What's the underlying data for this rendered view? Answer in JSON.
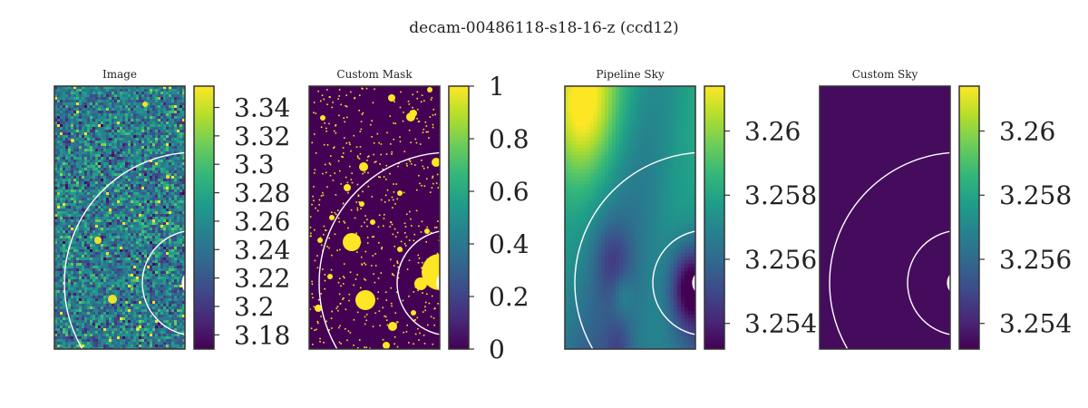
{
  "figure": {
    "title": "decam-00486118-s18-16-z (ccd12)"
  },
  "chart_data": [
    {
      "type": "heatmap",
      "title": "Image",
      "colormap": "viridis",
      "colorbar": {
        "min": 3.17,
        "max": 3.355,
        "ticks": [
          3.18,
          3.2,
          3.22,
          3.24,
          3.26,
          3.28,
          3.3,
          3.32,
          3.34
        ],
        "tick_labels": [
          "3.18",
          "3.2",
          "3.22",
          "3.24",
          "3.26",
          "3.28",
          "3.3",
          "3.32",
          "3.34"
        ]
      },
      "content": "noise",
      "overlay": "circles"
    },
    {
      "type": "heatmap",
      "title": "Custom Mask",
      "colormap": "viridis",
      "colorbar": {
        "min": 0,
        "max": 1,
        "ticks": [
          0,
          0.2,
          0.4,
          0.6,
          0.8,
          1
        ],
        "tick_labels": [
          "0",
          "0.2",
          "0.4",
          "0.6",
          "0.8",
          "1"
        ]
      },
      "content": "mask",
      "overlay": "circles"
    },
    {
      "type": "heatmap",
      "title": "Pipeline Sky",
      "colormap": "viridis",
      "colorbar": {
        "min": 3.2532,
        "max": 3.2614,
        "ticks": [
          3.254,
          3.256,
          3.258,
          3.26
        ],
        "tick_labels": [
          "3.254",
          "3.256",
          "3.258",
          "3.26"
        ]
      },
      "content": "smooth",
      "overlay": "circles"
    },
    {
      "type": "heatmap",
      "title": "Custom Sky",
      "colormap": "viridis",
      "colorbar": {
        "min": 3.2532,
        "max": 3.2614,
        "ticks": [
          3.254,
          3.256,
          3.258,
          3.26
        ],
        "tick_labels": [
          "3.254",
          "3.256",
          "3.258",
          "3.26"
        ]
      },
      "content": "flat",
      "overlay": "circles"
    }
  ]
}
